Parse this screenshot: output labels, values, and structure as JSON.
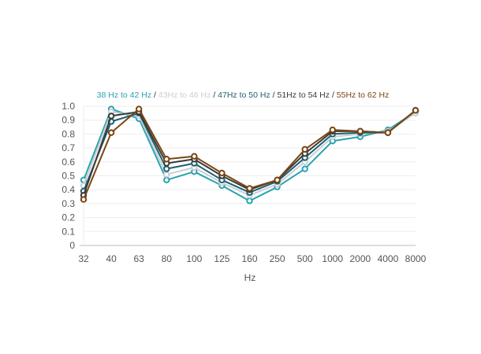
{
  "chart_data": {
    "type": "line",
    "xlabel": "Hz",
    "ylabel": "",
    "ylim": [
      0,
      1
    ],
    "yticks": [
      "0",
      "0.1",
      "0.2",
      "0.3",
      "0.4",
      "0.5",
      "0.6",
      "0.7",
      "0.8",
      "0.9",
      "1.0"
    ],
    "categories": [
      "32",
      "40",
      "63",
      "80",
      "100",
      "125",
      "160",
      "250",
      "500",
      "1000",
      "2000",
      "4000",
      "8000"
    ],
    "legend_position": "top-center",
    "grid": true,
    "series": [
      {
        "name": "38 Hz to 42 Hz",
        "color": "#29a3b0",
        "values": [
          0.47,
          0.98,
          0.91,
          0.47,
          0.53,
          0.43,
          0.32,
          0.42,
          0.55,
          0.75,
          0.78,
          0.83,
          0.96
        ]
      },
      {
        "name": "43Hz to 46 Hz",
        "color": "#c9cfd3",
        "values": [
          0.43,
          0.96,
          0.93,
          0.51,
          0.56,
          0.45,
          0.36,
          0.44,
          0.6,
          0.78,
          0.8,
          0.82,
          0.95
        ]
      },
      {
        "name": "47Hz to 50 Hz",
        "color": "#1f5f6e",
        "values": [
          0.39,
          0.89,
          0.95,
          0.55,
          0.59,
          0.47,
          0.38,
          0.46,
          0.63,
          0.8,
          0.81,
          0.81,
          0.97
        ]
      },
      {
        "name": "51Hz to 54 Hz",
        "color": "#3a3a3a",
        "values": [
          0.36,
          0.93,
          0.96,
          0.59,
          0.62,
          0.5,
          0.4,
          0.47,
          0.66,
          0.82,
          0.82,
          0.81,
          0.97
        ]
      },
      {
        "name": "55Hz to 62 Hz",
        "color": "#7a4512",
        "values": [
          0.33,
          0.81,
          0.98,
          0.62,
          0.64,
          0.52,
          0.41,
          0.47,
          0.69,
          0.83,
          0.82,
          0.81,
          0.97
        ]
      }
    ]
  }
}
